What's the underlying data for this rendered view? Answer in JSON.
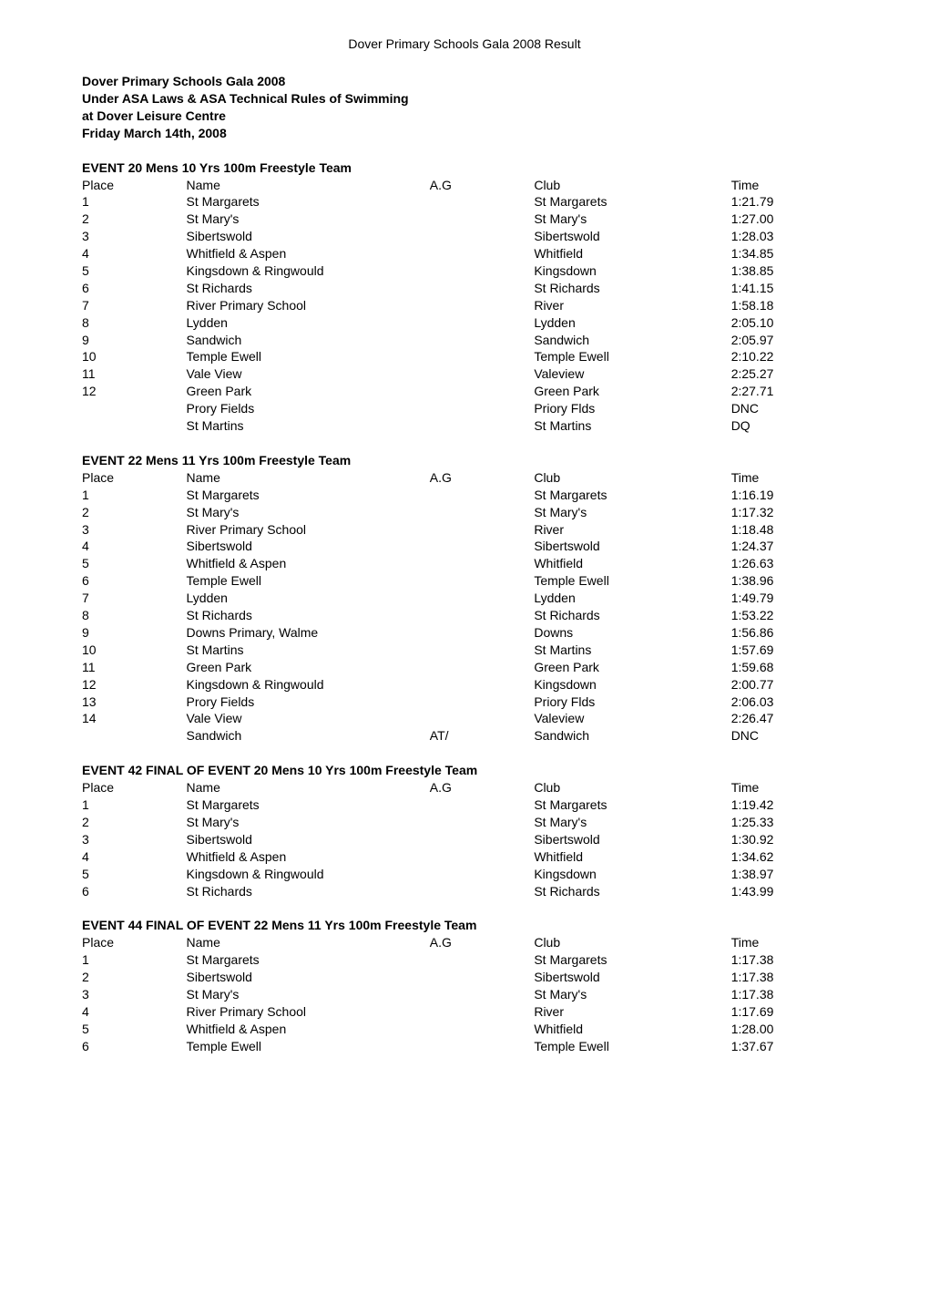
{
  "header_center": "Dover Primary Schools Gala 2008 Result",
  "doc_title_lines": [
    "Dover Primary Schools Gala 2008",
    "Under ASA Laws & ASA Technical Rules of Swimming",
    "at Dover Leisure Centre",
    "Friday March 14th, 2008"
  ],
  "columns": [
    "Place",
    "Name",
    "A.G",
    "Club",
    "Time"
  ],
  "events": [
    {
      "title": "EVENT 20 Mens 10 Yrs 100m Freestyle Team",
      "rows": [
        {
          "place": "1",
          "name": "St Margarets",
          "ag": "",
          "club": "St Margarets",
          "time": "1:21.79"
        },
        {
          "place": "2",
          "name": "St Mary's",
          "ag": "",
          "club": "St Mary's",
          "time": "1:27.00"
        },
        {
          "place": "3",
          "name": "Sibertswold",
          "ag": "",
          "club": "Sibertswold",
          "time": "1:28.03"
        },
        {
          "place": "4",
          "name": "Whitfield & Aspen",
          "ag": "",
          "club": "Whitfield",
          "time": "1:34.85"
        },
        {
          "place": "5",
          "name": "Kingsdown & Ringwould",
          "ag": "",
          "club": "Kingsdown",
          "time": "1:38.85"
        },
        {
          "place": "6",
          "name": "St Richards",
          "ag": "",
          "club": "St Richards",
          "time": "1:41.15"
        },
        {
          "place": "7",
          "name": "River Primary School",
          "ag": "",
          "club": "River",
          "time": "1:58.18"
        },
        {
          "place": "8",
          "name": "Lydden",
          "ag": "",
          "club": "Lydden",
          "time": "2:05.10"
        },
        {
          "place": "9",
          "name": "Sandwich",
          "ag": "",
          "club": "Sandwich",
          "time": "2:05.97"
        },
        {
          "place": "10",
          "name": "Temple Ewell",
          "ag": "",
          "club": "Temple Ewell",
          "time": "2:10.22"
        },
        {
          "place": "11",
          "name": "Vale View",
          "ag": "",
          "club": "Valeview",
          "time": "2:25.27"
        },
        {
          "place": "12",
          "name": "Green Park",
          "ag": "",
          "club": "Green Park",
          "time": "2:27.71"
        },
        {
          "place": "",
          "name": "Prory Fields",
          "ag": "",
          "club": "Priory Flds",
          "time": "DNC"
        },
        {
          "place": "",
          "name": "St Martins",
          "ag": "",
          "club": "St Martins",
          "time": "DQ"
        }
      ]
    },
    {
      "title": "EVENT 22 Mens 11 Yrs 100m Freestyle Team",
      "rows": [
        {
          "place": "1",
          "name": "St Margarets",
          "ag": "",
          "club": "St Margarets",
          "time": "1:16.19"
        },
        {
          "place": "2",
          "name": "St Mary's",
          "ag": "",
          "club": "St Mary's",
          "time": "1:17.32"
        },
        {
          "place": "3",
          "name": "River Primary School",
          "ag": "",
          "club": "River",
          "time": "1:18.48"
        },
        {
          "place": "4",
          "name": "Sibertswold",
          "ag": "",
          "club": "Sibertswold",
          "time": "1:24.37"
        },
        {
          "place": "5",
          "name": "Whitfield & Aspen",
          "ag": "",
          "club": "Whitfield",
          "time": "1:26.63"
        },
        {
          "place": "6",
          "name": "Temple Ewell",
          "ag": "",
          "club": "Temple Ewell",
          "time": "1:38.96"
        },
        {
          "place": "7",
          "name": "Lydden",
          "ag": "",
          "club": "Lydden",
          "time": "1:49.79"
        },
        {
          "place": "8",
          "name": "St Richards",
          "ag": "",
          "club": "St Richards",
          "time": "1:53.22"
        },
        {
          "place": "9",
          "name": "Downs Primary, Walme",
          "ag": "",
          "club": "Downs",
          "time": "1:56.86"
        },
        {
          "place": "10",
          "name": "St Martins",
          "ag": "",
          "club": "St Martins",
          "time": "1:57.69"
        },
        {
          "place": "11",
          "name": "Green Park",
          "ag": "",
          "club": "Green Park",
          "time": "1:59.68"
        },
        {
          "place": "12",
          "name": "Kingsdown & Ringwould",
          "ag": "",
          "club": "Kingsdown",
          "time": "2:00.77"
        },
        {
          "place": "13",
          "name": "Prory Fields",
          "ag": "",
          "club": "Priory Flds",
          "time": "2:06.03"
        },
        {
          "place": "14",
          "name": "Vale View",
          "ag": "",
          "club": "Valeview",
          "time": "2:26.47"
        },
        {
          "place": "",
          "name": "Sandwich",
          "ag": "AT/",
          "club": "Sandwich",
          "time": "DNC"
        }
      ]
    },
    {
      "title": "EVENT 42 FINAL OF EVENT 20 Mens 10 Yrs 100m Freestyle Team",
      "rows": [
        {
          "place": "1",
          "name": "St Margarets",
          "ag": "",
          "club": "St Margarets",
          "time": "1:19.42"
        },
        {
          "place": "2",
          "name": "St Mary's",
          "ag": "",
          "club": "St Mary's",
          "time": "1:25.33"
        },
        {
          "place": "3",
          "name": "Sibertswold",
          "ag": "",
          "club": "Sibertswold",
          "time": "1:30.92"
        },
        {
          "place": "4",
          "name": "Whitfield & Aspen",
          "ag": "",
          "club": "Whitfield",
          "time": "1:34.62"
        },
        {
          "place": "5",
          "name": "Kingsdown & Ringwould",
          "ag": "",
          "club": "Kingsdown",
          "time": "1:38.97"
        },
        {
          "place": "6",
          "name": "St Richards",
          "ag": "",
          "club": "St Richards",
          "time": "1:43.99"
        }
      ]
    },
    {
      "title": "EVENT 44 FINAL OF EVENT 22 Mens 11 Yrs 100m Freestyle Team",
      "rows": [
        {
          "place": "1",
          "name": "St Margarets",
          "ag": "",
          "club": "St Margarets",
          "time": "1:17.38"
        },
        {
          "place": "2",
          "name": "Sibertswold",
          "ag": "",
          "club": "Sibertswold",
          "time": "1:17.38"
        },
        {
          "place": "3",
          "name": "St Mary's",
          "ag": "",
          "club": "St Mary's",
          "time": "1:17.38"
        },
        {
          "place": "4",
          "name": "River Primary School",
          "ag": "",
          "club": "River",
          "time": "1:17.69"
        },
        {
          "place": "5",
          "name": "Whitfield & Aspen",
          "ag": "",
          "club": "Whitfield",
          "time": "1:28.00"
        },
        {
          "place": "6",
          "name": "Temple Ewell",
          "ag": "",
          "club": "Temple Ewell",
          "time": "1:37.67"
        }
      ]
    }
  ]
}
